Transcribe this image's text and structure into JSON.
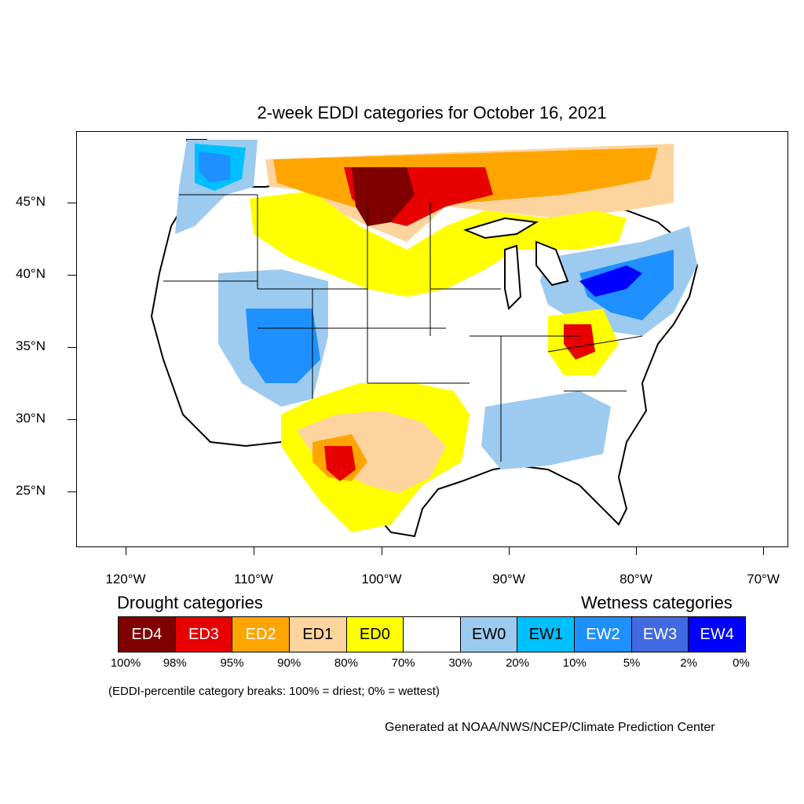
{
  "title": "2-week EDDI categories for October 16, 2021",
  "map": {
    "lat_labels": [
      "45°N",
      "40°N",
      "35°N",
      "30°N",
      "25°N"
    ],
    "lon_labels": [
      "120°W",
      "110°W",
      "100°W",
      "90°W",
      "80°W",
      "70°W"
    ],
    "colors": {
      "ED4": "#800000",
      "ED3": "#e60000",
      "ED2": "#ffa500",
      "ED1": "#fdd49e",
      "ED0": "#ffff00",
      "NEUTRAL": "#ffffff",
      "EW0": "#9ccbef",
      "EW1": "#00bfff",
      "EW2": "#1e90ff",
      "EW3": "#4169e1",
      "EW4": "#0000ff"
    }
  },
  "legend": {
    "drought_title": "Drought categories",
    "wetness_title": "Wetness categories",
    "categories": [
      {
        "label": "ED4",
        "color": "#800000",
        "text_color": "#ffffff"
      },
      {
        "label": "ED3",
        "color": "#e60000",
        "text_color": "#ffffff"
      },
      {
        "label": "ED2",
        "color": "#ffa500",
        "text_color": "#ffffff"
      },
      {
        "label": "ED1",
        "color": "#fdd49e",
        "text_color": "#000000"
      },
      {
        "label": "ED0",
        "color": "#ffff00",
        "text_color": "#000000"
      },
      {
        "label": "",
        "color": "#ffffff",
        "text_color": "#000000"
      },
      {
        "label": "EW0",
        "color": "#9ccbef",
        "text_color": "#000000"
      },
      {
        "label": "EW1",
        "color": "#00bfff",
        "text_color": "#000000"
      },
      {
        "label": "EW2",
        "color": "#1e90ff",
        "text_color": "#ffffff"
      },
      {
        "label": "EW3",
        "color": "#4169e1",
        "text_color": "#ffffff"
      },
      {
        "label": "EW4",
        "color": "#0000ff",
        "text_color": "#ffffff"
      }
    ],
    "breaks": [
      "100%",
      "98%",
      "95%",
      "90%",
      "80%",
      "70%",
      "30%",
      "20%",
      "10%",
      "5%",
      "2%",
      "0%"
    ]
  },
  "note": "(EDDI-percentile category breaks: 100% = driest; 0% = wettest)",
  "credit": "Generated at NOAA/NWS/NCEP/Climate Prediction Center"
}
